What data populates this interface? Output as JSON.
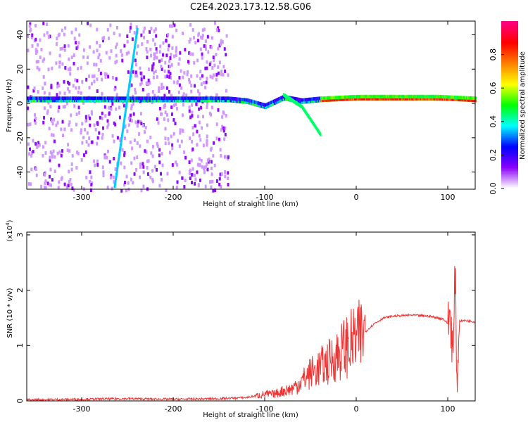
{
  "chart_data": [
    {
      "type": "heatmap",
      "title": "C2E4.2023.173.12.58.G06",
      "xlabel": "Height of straight line (km)",
      "ylabel": "Frequency (Hz)",
      "xlim": [
        -360,
        130
      ],
      "ylim": [
        -50,
        48
      ],
      "x_ticks": [
        -300,
        -200,
        -100,
        0,
        100
      ],
      "y_ticks": [
        -40,
        -20,
        0,
        20,
        40
      ],
      "colorbar": {
        "label": "Normalized spectral amplitude",
        "range": [
          0,
          1
        ],
        "ticks": [
          "0.0",
          "0.2",
          "0.4",
          "0.6",
          "0.8"
        ],
        "colors": [
          "#ffffff",
          "#8a00ff",
          "#0000ff",
          "#00ffff",
          "#00ff00",
          "#ffff00",
          "#ff8000",
          "#ff0000",
          "#ff0080"
        ]
      },
      "features": [
        {
          "name": "noise scatter",
          "x_range": [
            -360,
            -140
          ],
          "freq_range": [
            -50,
            48
          ],
          "amplitude": 0.1
        },
        {
          "name": "main trace",
          "points": [
            [
              -360,
              1
            ],
            [
              -300,
              1
            ],
            [
              -200,
              1
            ],
            [
              -140,
              1
            ],
            [
              -120,
              0
            ],
            [
              -100,
              -3
            ],
            [
              -80,
              2
            ],
            [
              -60,
              0
            ],
            [
              -40,
              1
            ],
            [
              0,
              2
            ],
            [
              50,
              2
            ],
            [
              90,
              2
            ],
            [
              130,
              1
            ]
          ],
          "amplitude_range": [
            0.3,
            0.9
          ]
        },
        {
          "name": "diagonal streak",
          "points": [
            [
              -265,
              -48
            ],
            [
              -240,
              45
            ]
          ],
          "amplitude": 0.35
        },
        {
          "name": "descending branch",
          "points": [
            [
              -80,
              5
            ],
            [
              -60,
              -2
            ],
            [
              -40,
              -18
            ]
          ],
          "amplitude": 0.45
        }
      ]
    },
    {
      "type": "line",
      "xlabel": "Height of straight line (km)",
      "ylabel": "SNR (10 * v/v)",
      "y_multiplier": "(x10",
      "y_multiplier_exp": "4",
      "y_multiplier_close": ")",
      "xlim": [
        -360,
        130
      ],
      "ylim": [
        0,
        3.05
      ],
      "x_ticks": [
        -300,
        -200,
        -100,
        0,
        100
      ],
      "y_ticks": [
        0,
        1,
        2,
        3
      ],
      "series": [
        {
          "color": "#ee3333",
          "x": [
            -360,
            -300,
            -250,
            -200,
            -150,
            -120,
            -100,
            -90,
            -80,
            -70,
            -60,
            -50,
            -40,
            -30,
            -20,
            -10,
            0,
            10,
            20,
            30,
            40,
            60,
            80,
            95,
            100,
            103,
            106,
            108,
            110,
            113,
            120,
            130
          ],
          "y": [
            0.02,
            0.03,
            0.04,
            0.03,
            0.04,
            0.06,
            0.12,
            0.12,
            0.18,
            0.22,
            0.35,
            0.5,
            0.6,
            0.7,
            0.85,
            1.0,
            1.1,
            1.25,
            1.4,
            1.5,
            1.53,
            1.55,
            1.53,
            1.48,
            1.4,
            1.6,
            0.7,
            2.4,
            0.4,
            1.45,
            1.45,
            1.43
          ]
        }
      ]
    }
  ]
}
